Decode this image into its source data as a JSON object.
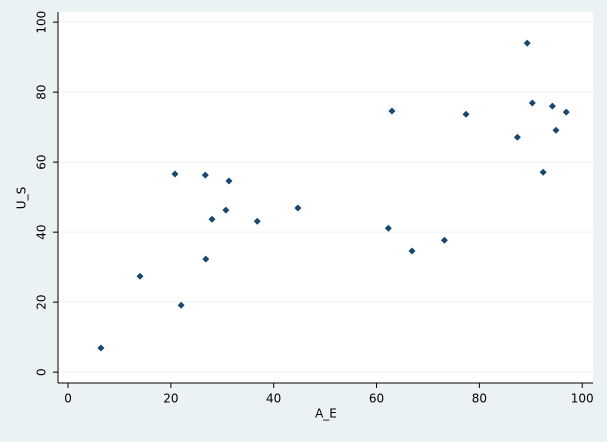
{
  "chart_data": {
    "type": "scatter",
    "x_label": "A_E",
    "y_label": "U_S",
    "x": [
      6.4,
      14.0,
      20.8,
      22.0,
      26.7,
      26.8,
      28.0,
      30.7,
      31.3,
      36.8,
      44.7,
      62.3,
      63.0,
      66.9,
      73.2,
      77.4,
      87.4,
      89.3,
      90.3,
      92.4,
      94.2,
      94.9,
      96.9
    ],
    "y": [
      6.9,
      27.4,
      56.6,
      19.1,
      56.3,
      32.3,
      43.7,
      46.3,
      54.6,
      43.1,
      46.9,
      41.1,
      74.6,
      34.6,
      37.7,
      73.7,
      67.1,
      94.0,
      76.9,
      57.1,
      76.0,
      69.1,
      74.3
    ],
    "color": "#1a476f",
    "xlim": [
      -1.95,
      102.1
    ],
    "ylim": [
      -3.1,
      102.9
    ],
    "xticks": [
      0,
      20,
      40,
      60,
      80,
      100
    ],
    "yticks": [
      0,
      20,
      40,
      60,
      80,
      100
    ],
    "grid": true
  }
}
